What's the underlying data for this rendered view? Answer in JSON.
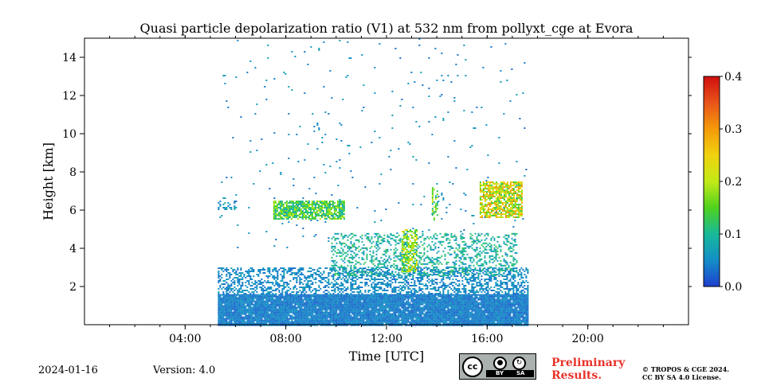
{
  "chart_data": {
    "type": "heatmap",
    "title": "Quasi particle depolarization ratio (V1) at 532 nm from pollyxt_cge at Evora",
    "xlabel": "Time [UTC]",
    "ylabel": "Height [km]",
    "xlim": [
      0,
      24
    ],
    "ylim": [
      0,
      15
    ],
    "x_ticks": [
      {
        "value": 4,
        "label": "04:00"
      },
      {
        "value": 8,
        "label": "08:00"
      },
      {
        "value": 12,
        "label": "12:00"
      },
      {
        "value": 16,
        "label": "16:00"
      },
      {
        "value": 20,
        "label": "20:00"
      }
    ],
    "y_ticks": [
      {
        "value": 2,
        "label": "2"
      },
      {
        "value": 4,
        "label": "4"
      },
      {
        "value": 6,
        "label": "6"
      },
      {
        "value": 8,
        "label": "8"
      },
      {
        "value": 10,
        "label": "10"
      },
      {
        "value": 12,
        "label": "12"
      },
      {
        "value": 14,
        "label": "14"
      }
    ],
    "colorbar": {
      "range": [
        0.0,
        0.4
      ],
      "ticks": [
        {
          "value": 0.0,
          "label": "0.0"
        },
        {
          "value": 0.1,
          "label": "0.1"
        },
        {
          "value": 0.2,
          "label": "0.2"
        },
        {
          "value": 0.3,
          "label": "0.3"
        },
        {
          "value": 0.4,
          "label": "0.4"
        }
      ],
      "colors": [
        "#1f3fcf",
        "#138ec8",
        "#18b99a",
        "#4fd21e",
        "#c3ea17",
        "#f0d20e",
        "#f59a0a",
        "#e8541a",
        "#d10f0f"
      ]
    },
    "data_window": {
      "start_hour": 5.3,
      "end_hour": 17.6
    },
    "regions": [
      {
        "name": "boundary-layer",
        "x": [
          5.3,
          17.6
        ],
        "y": [
          0.0,
          1.6
        ],
        "value": 0.04,
        "density": 0.97
      },
      {
        "name": "aerosol-layer",
        "x": [
          5.3,
          17.6
        ],
        "y": [
          1.6,
          3.0
        ],
        "value": 0.05,
        "density": 0.45
      },
      {
        "name": "lofted-aerosol",
        "x": [
          9.8,
          17.2
        ],
        "y": [
          2.6,
          4.8
        ],
        "value": 0.09,
        "density": 0.3
      },
      {
        "name": "cirrus-8km",
        "x": [
          7.5,
          10.3
        ],
        "y": [
          5.5,
          6.5
        ],
        "value": 0.14,
        "density": 0.8
      },
      {
        "name": "cirrus-16h",
        "x": [
          15.7,
          17.4
        ],
        "y": [
          5.6,
          7.5
        ],
        "value": 0.22,
        "density": 0.75
      },
      {
        "name": "plume-13h",
        "x": [
          12.6,
          13.2
        ],
        "y": [
          2.8,
          5.0
        ],
        "value": 0.18,
        "density": 0.55
      },
      {
        "name": "plume-14h",
        "x": [
          13.8,
          14.0
        ],
        "y": [
          5.5,
          7.2
        ],
        "value": 0.15,
        "density": 0.45
      },
      {
        "name": "streak-6h",
        "x": [
          5.3,
          6.0
        ],
        "y": [
          6.0,
          6.5
        ],
        "value": 0.06,
        "density": 0.4
      },
      {
        "name": "upper-scatter",
        "x": [
          5.3,
          17.6
        ],
        "y": [
          4.0,
          15.0
        ],
        "value": 0.05,
        "density": 0.012
      }
    ]
  },
  "footer": {
    "date": "2024-01-16",
    "version": "Version: 4.0",
    "preliminary_line1": "Preliminary",
    "preliminary_line2": "Results.",
    "copyright_line1": "© TROPOS & CGE 2024.",
    "copyright_line2": "CC BY SA 4.0 License.",
    "license_badge": {
      "by": "BY",
      "sa": "SA",
      "cc": "cc"
    }
  }
}
